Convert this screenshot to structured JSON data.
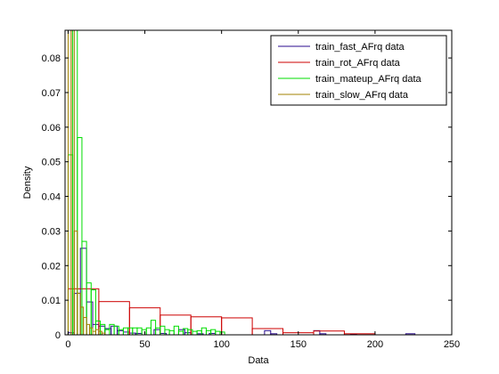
{
  "chart_data": {
    "type": "histogram",
    "xlabel": "Data",
    "ylabel": "Density",
    "xlim": [
      -2,
      250
    ],
    "ylim": [
      0,
      0.088
    ],
    "xticks": [
      0,
      50,
      100,
      150,
      200,
      250
    ],
    "yticks": [
      0,
      0.01,
      0.02,
      0.03,
      0.04,
      0.05,
      0.06,
      0.07,
      0.08
    ],
    "grid": false,
    "legend_position": "top-right",
    "series": [
      {
        "name": "train_fast_AFrq data",
        "color": "#2a0a8c",
        "bins": [
          {
            "x0": 0,
            "x1": 4,
            "density": 0.0006
          },
          {
            "x0": 4,
            "x1": 8,
            "density": 0.012
          },
          {
            "x0": 8,
            "x1": 12,
            "density": 0.025
          },
          {
            "x0": 12,
            "x1": 16,
            "density": 0.0095
          },
          {
            "x0": 16,
            "x1": 20,
            "density": 0.003
          },
          {
            "x0": 20,
            "x1": 24,
            "density": 0.0025
          },
          {
            "x0": 24,
            "x1": 28,
            "density": 0.0018
          },
          {
            "x0": 28,
            "x1": 32,
            "density": 0.0025
          },
          {
            "x0": 32,
            "x1": 36,
            "density": 0.0012
          },
          {
            "x0": 36,
            "x1": 40,
            "density": 0.0008
          },
          {
            "x0": 40,
            "x1": 44,
            "density": 0.0005
          },
          {
            "x0": 44,
            "x1": 48,
            "density": 0.0004
          },
          {
            "x0": 56,
            "x1": 60,
            "density": 0.0015
          },
          {
            "x0": 60,
            "x1": 64,
            "density": 0.0004
          },
          {
            "x0": 72,
            "x1": 76,
            "density": 0.0015
          },
          {
            "x0": 76,
            "x1": 80,
            "density": 0.0006
          },
          {
            "x0": 84,
            "x1": 88,
            "density": 0.0003
          },
          {
            "x0": 92,
            "x1": 96,
            "density": 0.0004
          },
          {
            "x0": 128,
            "x1": 132,
            "density": 0.0012
          },
          {
            "x0": 132,
            "x1": 136,
            "density": 0.0003
          },
          {
            "x0": 160,
            "x1": 164,
            "density": 0.0012
          },
          {
            "x0": 164,
            "x1": 168,
            "density": 0.0003
          },
          {
            "x0": 184,
            "x1": 188,
            "density": 0.0002
          },
          {
            "x0": 220,
            "x1": 226,
            "density": 0.0003
          }
        ]
      },
      {
        "name": "train_rot_AFrq data",
        "color": "#cc0000",
        "bins": [
          {
            "x0": 0,
            "x1": 20,
            "density": 0.0133
          },
          {
            "x0": 20,
            "x1": 40,
            "density": 0.0096
          },
          {
            "x0": 40,
            "x1": 60,
            "density": 0.0078
          },
          {
            "x0": 60,
            "x1": 80,
            "density": 0.0057
          },
          {
            "x0": 80,
            "x1": 100,
            "density": 0.0052
          },
          {
            "x0": 100,
            "x1": 120,
            "density": 0.0049
          },
          {
            "x0": 120,
            "x1": 140,
            "density": 0.0018
          },
          {
            "x0": 140,
            "x1": 160,
            "density": 0.0006
          },
          {
            "x0": 160,
            "x1": 180,
            "density": 0.0011
          },
          {
            "x0": 180,
            "x1": 200,
            "density": 0.0003
          }
        ]
      },
      {
        "name": "train_mateup_AFrq data",
        "color": "#00dd00",
        "bins": [
          {
            "x0": 0,
            "x1": 3,
            "density": 0.052
          },
          {
            "x0": 3,
            "x1": 6,
            "density": 0.088
          },
          {
            "x0": 6,
            "x1": 9,
            "density": 0.057
          },
          {
            "x0": 9,
            "x1": 12,
            "density": 0.027
          },
          {
            "x0": 12,
            "x1": 15,
            "density": 0.015
          },
          {
            "x0": 15,
            "x1": 18,
            "density": 0.013
          },
          {
            "x0": 18,
            "x1": 21,
            "density": 0.004
          },
          {
            "x0": 21,
            "x1": 24,
            "density": 0.003
          },
          {
            "x0": 24,
            "x1": 27,
            "density": 0.0015
          },
          {
            "x0": 27,
            "x1": 30,
            "density": 0.003
          },
          {
            "x0": 30,
            "x1": 33,
            "density": 0.0025
          },
          {
            "x0": 33,
            "x1": 36,
            "density": 0.0015
          },
          {
            "x0": 36,
            "x1": 39,
            "density": 0.002
          },
          {
            "x0": 39,
            "x1": 42,
            "density": 0.002
          },
          {
            "x0": 42,
            "x1": 45,
            "density": 0.002
          },
          {
            "x0": 45,
            "x1": 48,
            "density": 0.002
          },
          {
            "x0": 48,
            "x1": 51,
            "density": 0.0015
          },
          {
            "x0": 51,
            "x1": 54,
            "density": 0.002
          },
          {
            "x0": 54,
            "x1": 57,
            "density": 0.0042
          },
          {
            "x0": 57,
            "x1": 60,
            "density": 0.002
          },
          {
            "x0": 60,
            "x1": 63,
            "density": 0.0025
          },
          {
            "x0": 63,
            "x1": 66,
            "density": 0.0015
          },
          {
            "x0": 66,
            "x1": 69,
            "density": 0.0012
          },
          {
            "x0": 69,
            "x1": 72,
            "density": 0.0025
          },
          {
            "x0": 72,
            "x1": 75,
            "density": 0.001
          },
          {
            "x0": 75,
            "x1": 78,
            "density": 0.0018
          },
          {
            "x0": 78,
            "x1": 81,
            "density": 0.0015
          },
          {
            "x0": 81,
            "x1": 84,
            "density": 0.001
          },
          {
            "x0": 84,
            "x1": 87,
            "density": 0.0012
          },
          {
            "x0": 87,
            "x1": 90,
            "density": 0.002
          },
          {
            "x0": 90,
            "x1": 93,
            "density": 0.0012
          },
          {
            "x0": 93,
            "x1": 96,
            "density": 0.0015
          },
          {
            "x0": 96,
            "x1": 99,
            "density": 0.001
          },
          {
            "x0": 99,
            "x1": 102,
            "density": 0.0008
          }
        ]
      },
      {
        "name": "train_slow_AFrq data",
        "color": "#a08000",
        "bins": [
          {
            "x0": 0,
            "x1": 2,
            "density": 0.088
          },
          {
            "x0": 2,
            "x1": 4,
            "density": 0.088
          },
          {
            "x0": 4,
            "x1": 6,
            "density": 0.03
          },
          {
            "x0": 6,
            "x1": 8,
            "density": 0.012
          },
          {
            "x0": 8,
            "x1": 10,
            "density": 0.008
          },
          {
            "x0": 10,
            "x1": 12,
            "density": 0.005
          },
          {
            "x0": 12,
            "x1": 14,
            "density": 0.003
          },
          {
            "x0": 14,
            "x1": 16,
            "density": 0.002
          },
          {
            "x0": 16,
            "x1": 18,
            "density": 0.001
          },
          {
            "x0": 18,
            "x1": 20,
            "density": 0.0015
          },
          {
            "x0": 20,
            "x1": 22,
            "density": 0.001
          },
          {
            "x0": 22,
            "x1": 24,
            "density": 0.0005
          }
        ]
      }
    ]
  }
}
